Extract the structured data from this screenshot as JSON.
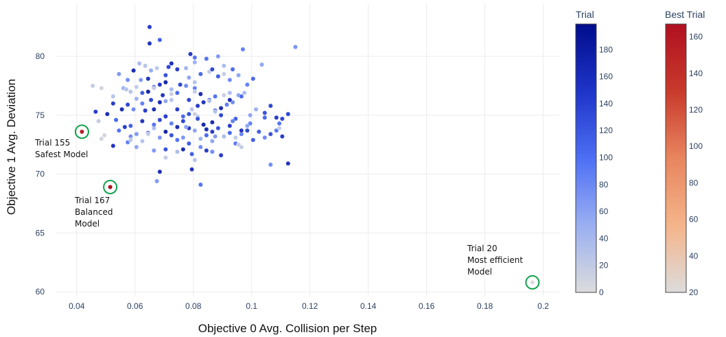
{
  "chart_data": {
    "type": "scatter",
    "xlabel": "Objective 0 Avg. Collision per Step",
    "ylabel": "Objective 1 Avg. Deviation",
    "xlim": [
      0.033,
      0.2055
    ],
    "ylim": [
      59.6,
      84.5
    ],
    "x_ticks": [
      0.04,
      0.06,
      0.08,
      0.1,
      0.12,
      0.14,
      0.16,
      0.18,
      0.2
    ],
    "x_tick_labels": [
      "0.04",
      "0.06",
      "0.08",
      "0.1",
      "0.12",
      "0.14",
      "0.16",
      "0.18",
      "0.2"
    ],
    "y_ticks": [
      60,
      65,
      70,
      75,
      80
    ],
    "y_tick_labels": [
      "60",
      "65",
      "70",
      "75",
      "80"
    ],
    "grid": true,
    "legend": "none",
    "colorbars": [
      {
        "title": "Trial",
        "range": [
          0,
          199
        ],
        "ticks": [
          0,
          20,
          40,
          60,
          80,
          100,
          120,
          140,
          160,
          180
        ],
        "colors": [
          "#dcdcdc",
          "#9aaff2",
          "#4d6ff4",
          "#1e34c8",
          "#000c8c"
        ]
      },
      {
        "title": "Best Trial",
        "range": [
          20,
          167
        ],
        "ticks": [
          20,
          40,
          60,
          80,
          100,
          120,
          140,
          160
        ],
        "colors": [
          "#dcdcdc",
          "#f5b48a",
          "#e8855f",
          "#c83a2c",
          "#b01020"
        ]
      }
    ],
    "series": [
      {
        "points": [
          [
            0.065,
            82.5,
            150
          ],
          [
            0.065,
            81.1,
            160
          ],
          [
            0.0685,
            81.4,
            120
          ],
          [
            0.097,
            80.6,
            90
          ],
          [
            0.115,
            80.8,
            75
          ],
          [
            0.079,
            80.2,
            155
          ],
          [
            0.0455,
            77.5,
            20
          ],
          [
            0.056,
            77.3,
            50
          ],
          [
            0.057,
            77.2,
            30
          ],
          [
            0.0615,
            79.4,
            40
          ],
          [
            0.0635,
            79.2,
            30
          ],
          [
            0.0655,
            78.8,
            55
          ],
          [
            0.0675,
            79.0,
            25
          ],
          [
            0.0705,
            78.4,
            130
          ],
          [
            0.0715,
            79.1,
            140
          ],
          [
            0.0725,
            79.4,
            165
          ],
          [
            0.0745,
            78.9,
            150
          ],
          [
            0.0775,
            79.0,
            45
          ],
          [
            0.0785,
            78.2,
            60
          ],
          [
            0.0595,
            78.8,
            170
          ],
          [
            0.0575,
            78.0,
            80
          ],
          [
            0.0545,
            78.5,
            70
          ],
          [
            0.062,
            78.0,
            70
          ],
          [
            0.0645,
            78.1,
            160
          ],
          [
            0.0665,
            77.4,
            120
          ],
          [
            0.0685,
            77.6,
            150
          ],
          [
            0.0705,
            77.8,
            180
          ],
          [
            0.0725,
            77.2,
            40
          ],
          [
            0.0755,
            77.6,
            140
          ],
          [
            0.0775,
            77.5,
            80
          ],
          [
            0.0805,
            77.3,
            90
          ],
          [
            0.0805,
            77.8,
            30
          ],
          [
            0.0825,
            78.5,
            110
          ],
          [
            0.0855,
            78.7,
            20
          ],
          [
            0.0865,
            78.9,
            140
          ],
          [
            0.0885,
            78.3,
            120
          ],
          [
            0.0905,
            78.5,
            20
          ],
          [
            0.0925,
            78.0,
            80
          ],
          [
            0.0935,
            78.9,
            110
          ],
          [
            0.0955,
            78.4,
            60
          ],
          [
            0.0985,
            77.6,
            90
          ],
          [
            0.1005,
            78.1,
            110
          ],
          [
            0.1035,
            79.3,
            60
          ],
          [
            0.0805,
            79.9,
            100
          ],
          [
            0.0805,
            79.5,
            50
          ],
          [
            0.0845,
            79.8,
            100
          ],
          [
            0.0905,
            79.2,
            40
          ],
          [
            0.0885,
            80.0,
            70
          ],
          [
            0.0525,
            76.0,
            150
          ],
          [
            0.0505,
            75.1,
            170
          ],
          [
            0.0535,
            74.6,
            110
          ],
          [
            0.0555,
            75.5,
            170
          ],
          [
            0.0575,
            75.9,
            140
          ],
          [
            0.0595,
            75.5,
            80
          ],
          [
            0.0605,
            76.4,
            50
          ],
          [
            0.0625,
            76.0,
            90
          ],
          [
            0.0635,
            75.4,
            150
          ],
          [
            0.0655,
            76.3,
            140
          ],
          [
            0.0665,
            75.5,
            170
          ],
          [
            0.0685,
            76.1,
            170
          ],
          [
            0.0705,
            76.2,
            60
          ],
          [
            0.0725,
            76.3,
            30
          ],
          [
            0.0745,
            75.5,
            150
          ],
          [
            0.0765,
            74.9,
            110
          ],
          [
            0.0785,
            75.1,
            130
          ],
          [
            0.0795,
            75.5,
            30
          ],
          [
            0.0815,
            75.8,
            150
          ],
          [
            0.0835,
            76.1,
            160
          ],
          [
            0.0855,
            76.3,
            110
          ],
          [
            0.0875,
            75.4,
            120
          ],
          [
            0.0895,
            75.6,
            170
          ],
          [
            0.0915,
            75.9,
            90
          ],
          [
            0.0935,
            76.1,
            80
          ],
          [
            0.0955,
            76.7,
            60
          ],
          [
            0.0975,
            76.9,
            40
          ],
          [
            0.0995,
            75.0,
            60
          ],
          [
            0.1015,
            75.5,
            50
          ],
          [
            0.1045,
            75.2,
            130
          ],
          [
            0.1065,
            75.8,
            140
          ],
          [
            0.1085,
            74.8,
            150
          ],
          [
            0.1105,
            74.7,
            140
          ],
          [
            0.1125,
            75.1,
            140
          ],
          [
            0.0545,
            73.7,
            100
          ],
          [
            0.0565,
            74.0,
            150
          ],
          [
            0.0585,
            73.2,
            80
          ],
          [
            0.0605,
            73.4,
            70
          ],
          [
            0.0625,
            72.8,
            30
          ],
          [
            0.0645,
            73.5,
            110
          ],
          [
            0.0665,
            73.9,
            40
          ],
          [
            0.0685,
            73.1,
            70
          ],
          [
            0.0705,
            73.6,
            180
          ],
          [
            0.0725,
            73.3,
            130
          ],
          [
            0.0745,
            72.9,
            100
          ],
          [
            0.0765,
            73.1,
            70
          ],
          [
            0.0785,
            72.6,
            120
          ],
          [
            0.0805,
            73.7,
            60
          ],
          [
            0.0825,
            73.0,
            50
          ],
          [
            0.0845,
            73.3,
            110
          ],
          [
            0.0865,
            73.6,
            150
          ],
          [
            0.0885,
            73.9,
            130
          ],
          [
            0.0905,
            73.2,
            40
          ],
          [
            0.0925,
            73.5,
            110
          ],
          [
            0.0945,
            73.1,
            20
          ],
          [
            0.0965,
            73.4,
            90
          ],
          [
            0.0985,
            73.7,
            140
          ],
          [
            0.1005,
            72.9,
            120
          ],
          [
            0.1045,
            73.1,
            80
          ],
          [
            0.1065,
            73.4,
            130
          ],
          [
            0.1085,
            73.7,
            100
          ],
          [
            0.1105,
            73.2,
            150
          ],
          [
            0.0525,
            72.4,
            160
          ],
          [
            0.0575,
            72.7,
            90
          ],
          [
            0.0605,
            72.3,
            60
          ],
          [
            0.0665,
            72.0,
            70
          ],
          [
            0.0705,
            72.1,
            130
          ],
          [
            0.0745,
            71.9,
            40
          ],
          [
            0.0795,
            71.7,
            120
          ],
          [
            0.0825,
            72.3,
            80
          ],
          [
            0.0845,
            72.0,
            150
          ],
          [
            0.0865,
            71.9,
            80
          ],
          [
            0.0895,
            71.6,
            150
          ],
          [
            0.0945,
            72.6,
            100
          ],
          [
            0.0965,
            72.3,
            20
          ],
          [
            0.1065,
            70.8,
            80
          ],
          [
            0.1125,
            70.9,
            160
          ],
          [
            0.0795,
            70.4,
            160
          ],
          [
            0.0685,
            70.2,
            170
          ],
          [
            0.0675,
            69.4,
            70
          ],
          [
            0.0825,
            69.1,
            100
          ],
          [
            0.0465,
            75.3,
            150
          ],
          [
            0.0475,
            74.5,
            20
          ],
          [
            0.0495,
            73.3,
            10
          ],
          [
            0.0485,
            73.0,
            10
          ],
          [
            0.0525,
            76.6,
            30
          ],
          [
            0.0585,
            77.0,
            30
          ],
          [
            0.0605,
            77.4,
            20
          ],
          [
            0.0665,
            77.3,
            15
          ],
          [
            0.0725,
            76.8,
            15
          ],
          [
            0.0805,
            77.0,
            20
          ],
          [
            0.0855,
            76.2,
            25
          ],
          [
            0.0905,
            76.7,
            15
          ],
          [
            0.0925,
            76.9,
            35
          ],
          [
            0.0805,
            75.1,
            15
          ],
          [
            0.0815,
            74.9,
            20
          ],
          [
            0.0645,
            73.4,
            15
          ],
          [
            0.0585,
            72.9,
            25
          ],
          [
            0.0705,
            71.4,
            20
          ],
          [
            0.0805,
            71.2,
            30
          ],
          [
            0.0485,
            77.3,
            10
          ],
          [
            0.0875,
            75.3,
            25
          ],
          [
            0.0955,
            72.5,
            15
          ],
          [
            0.1095,
            73.9,
            20
          ],
          [
            0.0685,
            74.6,
            140
          ],
          [
            0.0745,
            74.0,
            170
          ],
          [
            0.0835,
            74.2,
            180
          ],
          [
            0.0785,
            73.9,
            160
          ],
          [
            0.0865,
            74.4,
            170
          ],
          [
            0.0925,
            74.1,
            150
          ],
          [
            0.0965,
            73.7,
            160
          ],
          [
            0.0585,
            74.1,
            120
          ],
          [
            0.0625,
            74.5,
            160
          ],
          [
            0.0705,
            74.9,
            150
          ],
          [
            0.0765,
            74.5,
            140
          ],
          [
            0.0815,
            74.7,
            130
          ],
          [
            0.0895,
            75.0,
            140
          ],
          [
            0.0945,
            74.7,
            120
          ],
          [
            0.0995,
            74.3,
            90
          ],
          [
            0.1045,
            74.8,
            110
          ],
          [
            0.1095,
            74.3,
            100
          ],
          [
            0.0765,
            72.1,
            170
          ],
          [
            0.0865,
            72.8,
            60
          ],
          [
            0.0625,
            76.9,
            120
          ],
          [
            0.0645,
            77.0,
            180
          ],
          [
            0.0695,
            76.7,
            160
          ],
          [
            0.0745,
            76.9,
            110
          ],
          [
            0.0785,
            76.3,
            140
          ],
          [
            0.0825,
            76.8,
            170
          ],
          [
            0.0875,
            76.6,
            100
          ],
          [
            0.0925,
            76.3,
            170
          ],
          [
            0.0965,
            76.6,
            110
          ],
          [
            0.0665,
            74.2,
            100
          ],
          [
            0.0725,
            74.3,
            90
          ],
          [
            0.0775,
            74.0,
            60
          ],
          [
            0.0845,
            73.8,
            170
          ],
          [
            0.0875,
            73.2,
            70
          ],
          [
            0.0935,
            74.5,
            90
          ],
          [
            0.0985,
            74.1,
            60
          ],
          [
            0.1025,
            73.6,
            120
          ]
        ],
        "best": [
          [
            0.0418,
            73.6,
            155
          ],
          [
            0.0515,
            68.9,
            167
          ],
          [
            0.1963,
            60.8,
            20
          ]
        ]
      }
    ],
    "annotations": [
      {
        "lines": [
          "Trial 155",
          "Safest Model"
        ]
      },
      {
        "lines": [
          "Trial 167",
          "Balanced",
          "Model"
        ]
      },
      {
        "lines": [
          "Trial 20",
          "Most efficient",
          "Model"
        ]
      }
    ]
  }
}
